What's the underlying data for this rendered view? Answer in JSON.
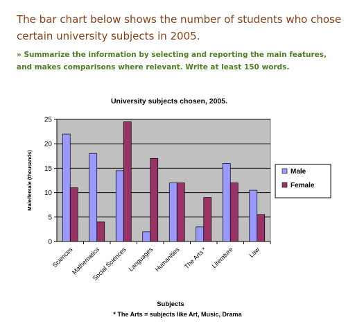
{
  "task": {
    "prompt": "The bar chart below shows the number of students who chose certain university subjects in 2005.",
    "instructions": "» Summarize the information by selecting and reporting the main features, and makes comparisons where relevant. Write at least 150 words."
  },
  "footnote": "* The Arts = subjects like Art, Music, Drama",
  "colors": {
    "male": "#9999ff",
    "female": "#993366",
    "plot_bg": "#c0c0c0",
    "prompt_text": "#8a3f12",
    "instructions_text": "#4e7d22"
  },
  "chart_data": {
    "type": "bar",
    "title": "University subjects chosen, 2005.",
    "xlabel": "Subjects",
    "ylabel": "Male/female (thousands)",
    "ylim": [
      0,
      25
    ],
    "yticks": [
      0,
      5,
      10,
      15,
      20,
      25
    ],
    "grid": true,
    "legend_position": "right",
    "categories": [
      "Sciences",
      "Mathematics",
      "Social Sciences",
      "Languages",
      "Humanities",
      "The Arts *",
      "Literature",
      "Law"
    ],
    "series": [
      {
        "name": "Male",
        "values": [
          22,
          18,
          14.5,
          2,
          12,
          3,
          16,
          10.5
        ]
      },
      {
        "name": "Female",
        "values": [
          11,
          4,
          24.5,
          17,
          12,
          9,
          12,
          5.5
        ]
      }
    ]
  }
}
